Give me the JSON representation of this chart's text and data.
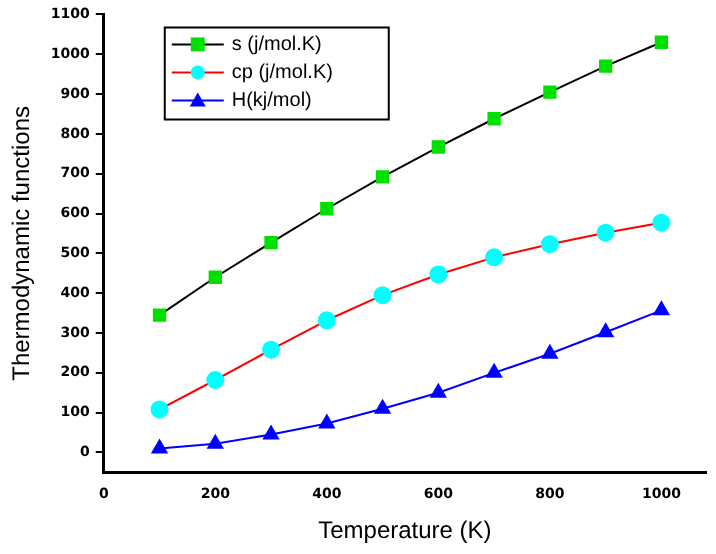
{
  "chart_data": {
    "type": "line",
    "xlabel": "Temperature (K)",
    "ylabel": "Thermodynamic functions",
    "x": [
      100,
      200,
      300,
      400,
      500,
      600,
      700,
      800,
      900,
      1000
    ],
    "series": [
      {
        "name": "s (j/mol.K)",
        "color": "#000000",
        "marker": "square",
        "colors": [
          "#00e000",
          "#00e000",
          "#00e000",
          "#00e000",
          "#00e000",
          "#00e000",
          "#00e000",
          "#00e000",
          "#00e000",
          "#00e000"
        ],
        "values": [
          345,
          440,
          527,
          612,
          692,
          767,
          838,
          905,
          970,
          1030
        ]
      },
      {
        "name": "cp (j/mol.K)",
        "color": "#ff0000",
        "marker": "circle",
        "colors": [
          "#00ffff",
          "#00ffff",
          "#00ffff",
          "#00ffff",
          "#00ffff",
          "#00ffff",
          "#00ffff",
          "#00ffff",
          "#00ffff",
          "#00ffff"
        ],
        "values": [
          108,
          182,
          258,
          332,
          395,
          447,
          490,
          523,
          552,
          577
        ]
      },
      {
        "name": "H(kj/mol)",
        "color": "#0000ff",
        "marker": "triangle",
        "values": [
          10,
          22,
          45,
          73,
          110,
          150,
          200,
          248,
          302,
          357
        ]
      }
    ],
    "xlim": [
      0,
      1080
    ],
    "xticks": [
      0,
      200,
      400,
      600,
      800,
      1000
    ],
    "ylim": [
      -50,
      1100
    ],
    "yticks": [
      0,
      100,
      200,
      300,
      400,
      500,
      600,
      700,
      800,
      900,
      1000,
      1100
    ],
    "grid": false,
    "legend": "top left"
  }
}
